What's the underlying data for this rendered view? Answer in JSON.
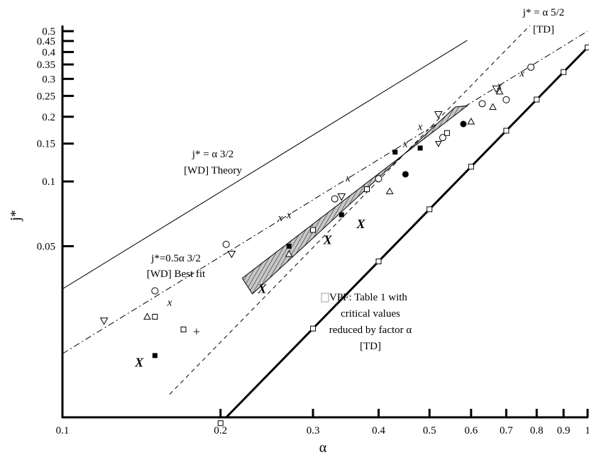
{
  "chart_data": {
    "type": "scatter",
    "x_scale": "log",
    "y_scale": "log",
    "xlabel": "α",
    "ylabel": "j*",
    "xlim": [
      0.1,
      1.0
    ],
    "ylim": [
      0.008,
      0.5
    ],
    "x_ticks": [
      0.1,
      0.2,
      0.3,
      0.4,
      0.5,
      0.6,
      0.7,
      0.8,
      0.9,
      1.0
    ],
    "x_tick_labels": [
      "0.1",
      "0.2",
      "0.3",
      "0.4",
      "0.5",
      "0.6",
      "0.7",
      "0.8",
      "0.9",
      "1"
    ],
    "y_ticks": [
      0.05,
      0.1,
      0.15,
      0.2,
      0.25,
      0.3,
      0.35,
      0.4,
      0.45,
      0.5
    ],
    "y_tick_labels": [
      "0.05",
      "0.1",
      "0.15",
      "0.2",
      "0.25",
      "0.3",
      "0.35",
      "0.4",
      "0.45",
      "0.5"
    ],
    "grid": false,
    "annotations": [
      {
        "id": "theory",
        "lines": [
          "j* = α 3/2",
          "[WD] Theory"
        ]
      },
      {
        "id": "bestfit",
        "lines": [
          "j*=0.5α 3/2",
          "[WD] Best fit"
        ]
      },
      {
        "id": "td",
        "lines": [
          "j* = α 5/2",
          "[TD]"
        ]
      },
      {
        "id": "vpf",
        "lines": [
          "VPF: Table 1 with",
          "critical values",
          "reduced by factor α",
          "[TD]"
        ]
      }
    ],
    "lines": [
      {
        "id": "theory",
        "style": "solid-thin",
        "coef": 1.0,
        "power": 1.5,
        "x_range": [
          0.1,
          0.59
        ]
      },
      {
        "id": "bestfit",
        "style": "dash-dot",
        "coef": 0.5,
        "power": 1.5,
        "x_range": [
          0.1,
          1.0
        ]
      },
      {
        "id": "td",
        "style": "dashed",
        "coef": 1.0,
        "power": 2.5,
        "x_range": [
          0.16,
          1.0
        ]
      },
      {
        "id": "vpf",
        "style": "solid-thick",
        "coef": 0.42,
        "power": 2.5,
        "x_range": [
          0.175,
          1.0
        ],
        "markers": [
          0.2,
          0.3,
          0.4,
          0.5,
          0.6,
          0.7,
          0.8,
          0.9,
          1.0
        ]
      }
    ],
    "band": {
      "style": "hatched",
      "polygon": [
        [
          0.22,
          0.0355
        ],
        [
          0.59,
          0.225
        ],
        [
          0.56,
          0.222
        ],
        [
          0.23,
          0.03
        ]
      ]
    },
    "points": [
      {
        "marker": "triangle-down",
        "xy": [
          [
            0.12,
            0.0225
          ],
          [
            0.21,
            0.046
          ],
          [
            0.34,
            0.085
          ],
          [
            0.52,
            0.205
          ],
          [
            0.67,
            0.27
          ]
        ]
      },
      {
        "marker": "triangle-down-small",
        "xy": [
          [
            0.52,
            0.15
          ]
        ]
      },
      {
        "marker": "triangle-up",
        "xy": [
          [
            0.145,
            0.0235
          ],
          [
            0.27,
            0.046
          ],
          [
            0.42,
            0.09
          ],
          [
            0.6,
            0.19
          ],
          [
            0.66,
            0.222
          ],
          [
            0.68,
            0.262
          ]
        ]
      },
      {
        "marker": "circle-open",
        "xy": [
          [
            0.15,
            0.031
          ],
          [
            0.205,
            0.051
          ],
          [
            0.33,
            0.083
          ],
          [
            0.4,
            0.103
          ],
          [
            0.53,
            0.16
          ],
          [
            0.63,
            0.23
          ],
          [
            0.7,
            0.24
          ],
          [
            0.78,
            0.34
          ]
        ]
      },
      {
        "marker": "square-open",
        "xy": [
          [
            0.15,
            0.0235
          ],
          [
            0.17,
            0.0205
          ],
          [
            0.3,
            0.0595
          ],
          [
            0.38,
            0.092
          ],
          [
            0.54,
            0.168
          ]
        ]
      },
      {
        "marker": "square-filled",
        "xy": [
          [
            0.15,
            0.0155
          ],
          [
            0.27,
            0.05
          ],
          [
            0.34,
            0.07
          ],
          [
            0.43,
            0.137
          ],
          [
            0.48,
            0.143
          ]
        ]
      },
      {
        "marker": "circle-filled",
        "xy": [
          [
            0.45,
            0.108
          ],
          [
            0.58,
            0.185
          ]
        ]
      },
      {
        "marker": "x-small",
        "xy": [
          [
            0.16,
            0.0275
          ],
          [
            0.26,
            0.068
          ],
          [
            0.27,
            0.07
          ],
          [
            0.35,
            0.104
          ],
          [
            0.45,
            0.15
          ],
          [
            0.48,
            0.18
          ],
          [
            0.68,
            0.28
          ],
          [
            0.75,
            0.32
          ]
        ]
      },
      {
        "marker": "x-large",
        "xy": [
          [
            0.14,
            0.0145
          ],
          [
            0.24,
            0.032
          ],
          [
            0.32,
            0.054
          ],
          [
            0.37,
            0.064
          ]
        ]
      },
      {
        "marker": "plus",
        "xy": [
          [
            0.18,
            0.02
          ]
        ]
      }
    ]
  }
}
